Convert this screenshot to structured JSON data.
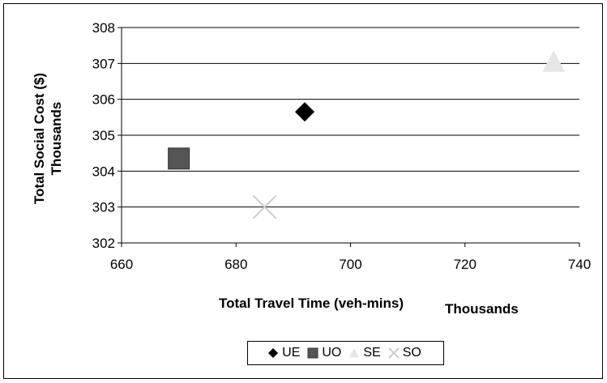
{
  "chart_data": {
    "type": "scatter",
    "title": "",
    "xlabel": "Total Travel Time (veh-mins)",
    "xlabel_unit_note": "Thousands",
    "ylabel": "Total Social Cost ($)",
    "ylabel_unit_note": "Thousands",
    "xlim": [
      660,
      740
    ],
    "ylim": [
      302,
      308
    ],
    "x_ticks": [
      "660",
      "680",
      "700",
      "720",
      "740"
    ],
    "y_ticks": [
      "302",
      "303",
      "304",
      "305",
      "306",
      "307",
      "308"
    ],
    "grid": "horizontal",
    "legend_position": "bottom",
    "series": [
      {
        "name": "UE",
        "marker": "diamond",
        "color": "#000000",
        "points": [
          {
            "x": 692,
            "y": 305.65
          }
        ]
      },
      {
        "name": "UO",
        "marker": "square",
        "color": "#555555",
        "points": [
          {
            "x": 670,
            "y": 304.35
          }
        ]
      },
      {
        "name": "SE",
        "marker": "triangle",
        "color": "#e6e6e6",
        "points": [
          {
            "x": 735.5,
            "y": 307.05
          }
        ]
      },
      {
        "name": "SO",
        "marker": "x",
        "color": "#cccccc",
        "points": [
          {
            "x": 685,
            "y": 303.0
          }
        ]
      }
    ]
  }
}
